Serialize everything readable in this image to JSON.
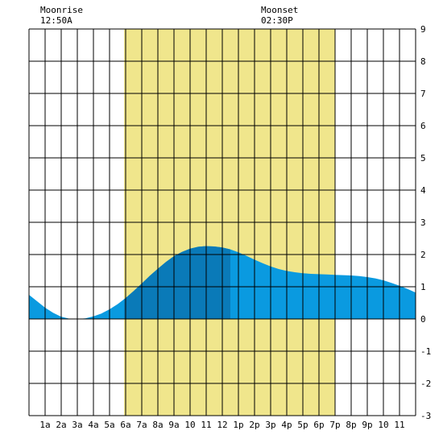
{
  "header": {
    "moonrise_label": "Moonrise",
    "moonrise_time": "12:50A",
    "moonset_label": "Moonset",
    "moonset_time": "02:30P"
  },
  "chart_data": {
    "type": "area",
    "title": "",
    "xlabel": "",
    "ylabel": "",
    "x_tick_labels": [
      "1a",
      "2a",
      "3a",
      "4a",
      "5a",
      "6a",
      "7a",
      "8a",
      "9a",
      "10",
      "11",
      "12",
      "1p",
      "2p",
      "3p",
      "4p",
      "5p",
      "6p",
      "7p",
      "8p",
      "9p",
      "10",
      "11"
    ],
    "xlim": [
      0,
      24
    ],
    "ylim": [
      -3,
      9
    ],
    "y_ticks": [
      -3,
      -2,
      -1,
      0,
      1,
      2,
      3,
      4,
      5,
      6,
      7,
      8,
      9
    ],
    "grid": true,
    "daylight_hours": [
      5.9,
      19.0
    ],
    "current_time_hour": 12.5,
    "colors": {
      "daylight": "#f0e68c",
      "tide_fill": "#0a9ae0",
      "tide_fill_highlight": "#0a7ab8",
      "grid": "#000000"
    },
    "series": [
      {
        "x": [
          0,
          0.5,
          1,
          1.5,
          2,
          2.5,
          3,
          3.5,
          4,
          4.5,
          5,
          5.5,
          6,
          6.5,
          7,
          7.5,
          8,
          8.5,
          9,
          9.5,
          10,
          10.5,
          11,
          11.5,
          12,
          12.5,
          13,
          13.5,
          14,
          14.5,
          15,
          15.5,
          16,
          16.5,
          17,
          17.5,
          18,
          18.5,
          19,
          19.5,
          20,
          20.5,
          21,
          21.5,
          22,
          22.5,
          23,
          23.5,
          24
        ],
        "values": [
          0.75,
          0.55,
          0.35,
          0.19,
          0.07,
          0.01,
          0.0,
          0.02,
          0.08,
          0.17,
          0.3,
          0.46,
          0.65,
          0.87,
          1.1,
          1.34,
          1.56,
          1.77,
          1.95,
          2.08,
          2.18,
          2.24,
          2.26,
          2.25,
          2.22,
          2.16,
          2.07,
          1.96,
          1.84,
          1.73,
          1.63,
          1.55,
          1.49,
          1.45,
          1.42,
          1.4,
          1.39,
          1.38,
          1.37,
          1.36,
          1.35,
          1.33,
          1.3,
          1.26,
          1.2,
          1.12,
          1.03,
          0.93,
          0.82
        ]
      }
    ]
  }
}
